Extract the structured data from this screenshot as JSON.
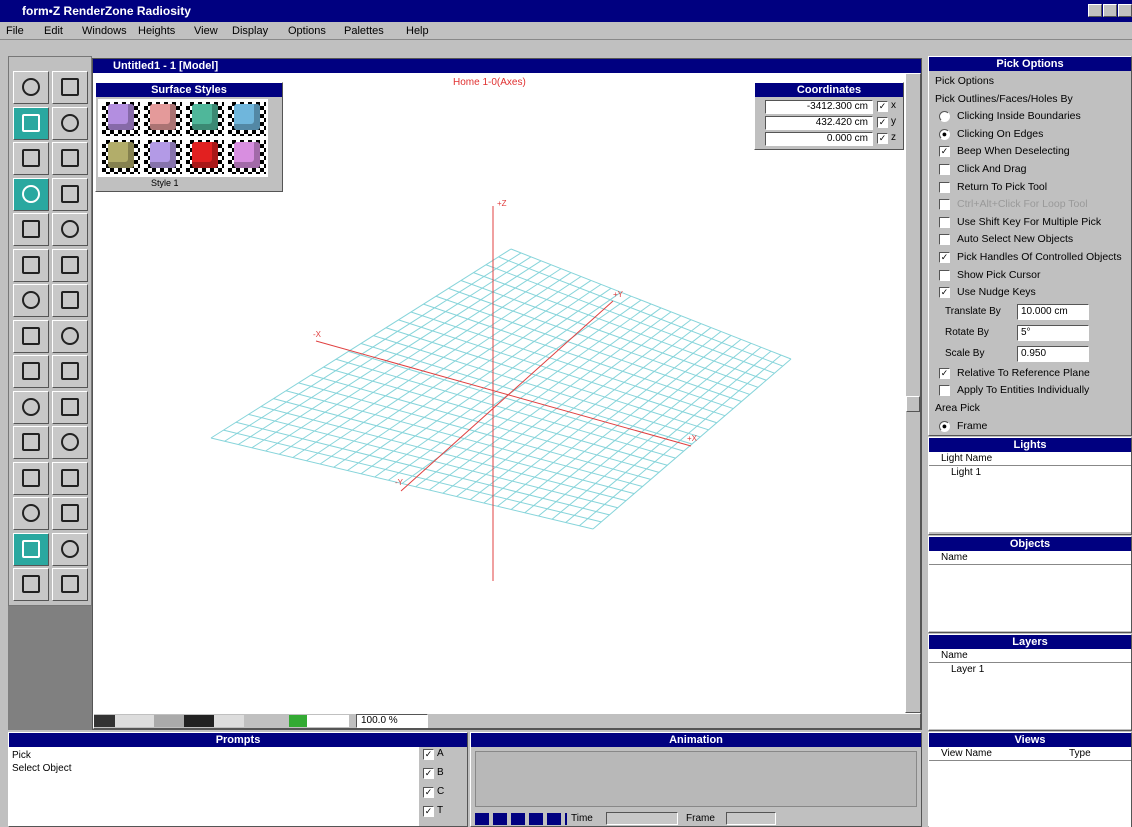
{
  "window_title": "form•Z RenderZone Radiosity",
  "menu": [
    "File",
    "Edit",
    "Windows",
    "Heights",
    "View",
    "Display",
    "Options",
    "Palettes",
    "Help"
  ],
  "document": {
    "title": "Untitled1 - 1 [Model]",
    "view_label": "Home 1-0(Axes)",
    "axis_labels": [
      "+Z",
      "+Y",
      "-X",
      "+X",
      "-Y"
    ],
    "zoom": "100.0 %"
  },
  "surface_styles": {
    "title": "Surface Styles",
    "style_name": "Style 1",
    "swatches": [
      "#b38ee0",
      "#e49a9a",
      "#4fb79a",
      "#6fb6dc",
      "#b2ad6a",
      "#b39ae6",
      "#e22020",
      "#d88ee0"
    ]
  },
  "coordinates": {
    "title": "Coordinates",
    "rows": [
      {
        "value": "-3412.300 cm",
        "axis": "x"
      },
      {
        "value": "432.420 cm",
        "axis": "y"
      },
      {
        "value": "0.000 cm",
        "axis": "z"
      }
    ]
  },
  "pick_options": {
    "title": "Pick Options",
    "items": [
      {
        "kind": "label",
        "text": "Pick Options"
      },
      {
        "kind": "label",
        "text": "Pick Outlines/Faces/Holes By"
      },
      {
        "kind": "radio",
        "checked": false,
        "text": "Clicking Inside Boundaries"
      },
      {
        "kind": "radio",
        "checked": true,
        "text": "Clicking On Edges"
      },
      {
        "kind": "check",
        "checked": true,
        "text": "Beep When Deselecting"
      },
      {
        "kind": "check",
        "checked": false,
        "text": "Click And Drag"
      },
      {
        "kind": "check",
        "checked": false,
        "text": "Return To Pick Tool"
      },
      {
        "kind": "check",
        "checked": false,
        "disabled": true,
        "text": "Ctrl+Alt+Click For Loop Tool"
      },
      {
        "kind": "check",
        "checked": false,
        "text": "Use Shift Key For Multiple Pick"
      },
      {
        "kind": "check",
        "checked": false,
        "text": "Auto Select New Objects"
      },
      {
        "kind": "check",
        "checked": true,
        "text": "Pick Handles Of Controlled Objects"
      },
      {
        "kind": "check",
        "checked": false,
        "text": "Show Pick Cursor"
      },
      {
        "kind": "check",
        "checked": true,
        "text": "Use Nudge Keys"
      },
      {
        "kind": "field",
        "text": "Translate By",
        "value": "10.000 cm"
      },
      {
        "kind": "field",
        "text": "Rotate By",
        "value": "5°"
      },
      {
        "kind": "field",
        "text": "Scale By",
        "value": "0.950"
      },
      {
        "kind": "check",
        "checked": true,
        "text": "Relative To Reference Plane"
      },
      {
        "kind": "check",
        "checked": false,
        "text": "Apply To Entities Individually"
      },
      {
        "kind": "label",
        "text": "Area Pick"
      },
      {
        "kind": "radio",
        "checked": true,
        "text": "Frame"
      }
    ]
  },
  "lights": {
    "title": "Lights",
    "header": "Light Name",
    "rows": [
      "Light 1"
    ]
  },
  "objects": {
    "title": "Objects",
    "header": "Name"
  },
  "layers": {
    "title": "Layers",
    "header": "Name",
    "rows": [
      "Layer 1"
    ]
  },
  "views": {
    "title": "Views",
    "header": "View Name",
    "type_header": "Type"
  },
  "prompts": {
    "title": "Prompts",
    "lines": [
      "Pick",
      "Select Object"
    ],
    "checks": [
      "A",
      "B",
      "C",
      "T"
    ]
  },
  "animation": {
    "title": "Animation",
    "time_label": "Time",
    "frame_label": "Frame"
  }
}
